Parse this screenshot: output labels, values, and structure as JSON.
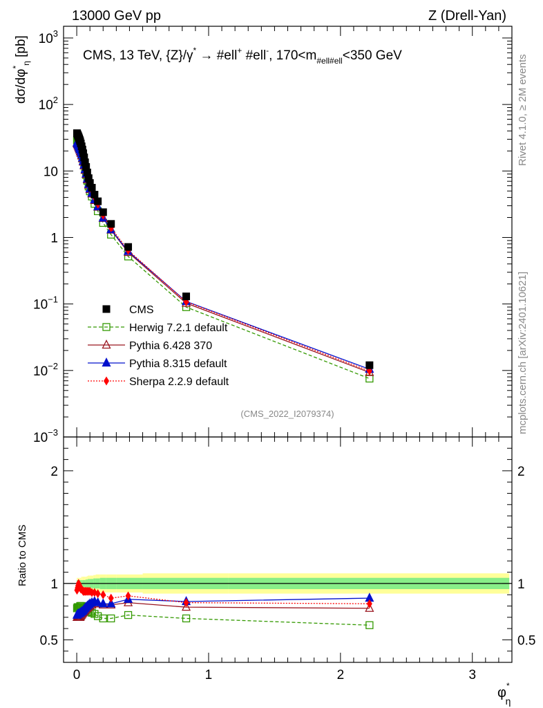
{
  "header": {
    "left": "13000 GeV pp",
    "right": "Z (Drell-Yan)"
  },
  "side": {
    "rivet": "Rivet 4.1.0, ≥ 2M events",
    "mcplots": "mcplots.cern.ch [arXiv:2401.10621]"
  },
  "chart_data": {
    "type": "line",
    "title": "CMS, 13 TeV, {Z}/γ* → #ell⁺ #ell⁻, 170<m#ell#ell<350 GeV",
    "title_parts": {
      "main": "CMS, 13 TeV, {Z}/γ",
      "sup1": "*",
      "arrow": " →  #ell",
      "sup2": "+",
      "mid": " #ell",
      "sup3": "-",
      "tail": ", 170<m",
      "sub": "#ell#ell",
      "end": "<350 GeV"
    },
    "watermark": "(CMS_2022_I2079374)",
    "xlabel": "φ",
    "xlabel_sup": "*",
    "xlabel_sub": "η",
    "ylabel": "dσ/dφ",
    "ylabel_sup": "*",
    "ylabel_sub": "η",
    "ylabel_unit": " [pb]",
    "ratio_ylabel": "Ratio to CMS",
    "xlim": [
      -0.1,
      3.3
    ],
    "ylim": [
      0.001,
      1500
    ],
    "ratio_ylim": [
      0.3,
      2.3
    ],
    "xticks": [
      "0",
      "1",
      "2",
      "3"
    ],
    "yticks_main": [
      {
        "v": 1000,
        "b": "10",
        "e": "3"
      },
      {
        "v": 100,
        "b": "10",
        "e": "2"
      },
      {
        "v": 10,
        "b": "10",
        "e": ""
      },
      {
        "v": 1,
        "b": "1",
        "e": ""
      },
      {
        "v": 0.1,
        "b": "10",
        "e": "−1"
      },
      {
        "v": 0.01,
        "b": "10",
        "e": "−2"
      },
      {
        "v": 0.001,
        "b": "10",
        "e": "−3"
      }
    ],
    "yticks_ratio": [
      "0.5",
      "1",
      "2"
    ],
    "x": [
      0.002,
      0.006,
      0.01,
      0.014,
      0.018,
      0.022,
      0.026,
      0.031,
      0.037,
      0.043,
      0.049,
      0.056,
      0.063,
      0.071,
      0.08,
      0.09,
      0.1,
      0.115,
      0.135,
      0.16,
      0.2,
      0.26,
      0.39,
      0.83,
      2.22
    ],
    "bin_edges": [
      0.0,
      0.004,
      0.008,
      0.012,
      0.016,
      0.02,
      0.024,
      0.028,
      0.034,
      0.04,
      0.046,
      0.052,
      0.06,
      0.066,
      0.076,
      0.084,
      0.096,
      0.104,
      0.126,
      0.144,
      0.176,
      0.224,
      0.3,
      0.5,
      1.15,
      3.28
    ],
    "series": [
      {
        "name": "CMS",
        "style": "data",
        "color": "#000000",
        "marker": "square-filled",
        "values": [
          37,
          35.5,
          34,
          32.5,
          31,
          29.5,
          28,
          26,
          23.5,
          21,
          18.5,
          16,
          13.5,
          11.5,
          9.5,
          7.8,
          6.6,
          5.6,
          4.4,
          3.5,
          2.4,
          1.6,
          0.72,
          0.13,
          0.012
        ]
      },
      {
        "name": "Herwig 7.2.1 default",
        "style": "dashed",
        "color": "#339900",
        "marker": "square-open",
        "ratio": [
          0.78,
          0.79,
          0.79,
          0.79,
          0.79,
          0.79,
          0.8,
          0.8,
          0.8,
          0.79,
          0.78,
          0.78,
          0.77,
          0.76,
          0.75,
          0.75,
          0.75,
          0.74,
          0.73,
          0.71,
          0.69,
          0.69,
          0.72,
          0.69,
          0.63
        ]
      },
      {
        "name": "Pythia 6.428 370",
        "style": "solid",
        "color": "#99141e",
        "marker": "triangle-open",
        "ratio": [
          0.7,
          0.7,
          0.7,
          0.7,
          0.7,
          0.7,
          0.7,
          0.71,
          0.72,
          0.73,
          0.74,
          0.75,
          0.76,
          0.77,
          0.78,
          0.79,
          0.8,
          0.81,
          0.82,
          0.82,
          0.81,
          0.81,
          0.83,
          0.79,
          0.78
        ]
      },
      {
        "name": "Pythia 8.315 default",
        "style": "solid",
        "color": "#0010cc",
        "marker": "triangle-filled",
        "ratio": [
          0.72,
          0.72,
          0.73,
          0.73,
          0.73,
          0.73,
          0.74,
          0.74,
          0.75,
          0.75,
          0.76,
          0.77,
          0.78,
          0.79,
          0.8,
          0.81,
          0.82,
          0.83,
          0.84,
          0.83,
          0.82,
          0.82,
          0.86,
          0.84,
          0.87
        ]
      },
      {
        "name": "Sherpa 2.2.9 default",
        "style": "dotted",
        "color": "#ff0000",
        "marker": "diamond-filled",
        "ratio": [
          0.94,
          0.96,
          0.98,
          1.0,
          0.99,
          0.97,
          0.96,
          0.95,
          0.95,
          0.94,
          0.93,
          0.93,
          0.93,
          0.93,
          0.93,
          0.93,
          0.93,
          0.92,
          0.92,
          0.91,
          0.9,
          0.87,
          0.89,
          0.83,
          0.82
        ]
      }
    ],
    "uncertainty_bands": {
      "inner_color": "#88ee88",
      "outer_color": "#ffff99",
      "inner": [
        0.03,
        0.03,
        0.03,
        0.03,
        0.03,
        0.03,
        0.03,
        0.03,
        0.03,
        0.03,
        0.03,
        0.03,
        0.03,
        0.035,
        0.035,
        0.04,
        0.04,
        0.04,
        0.045,
        0.045,
        0.05,
        0.05,
        0.05,
        0.05,
        0.05
      ],
      "outer": [
        0.05,
        0.05,
        0.05,
        0.05,
        0.05,
        0.05,
        0.05,
        0.05,
        0.06,
        0.06,
        0.06,
        0.06,
        0.06,
        0.06,
        0.065,
        0.07,
        0.07,
        0.07,
        0.075,
        0.08,
        0.08,
        0.08,
        0.08,
        0.09,
        0.09
      ]
    }
  }
}
